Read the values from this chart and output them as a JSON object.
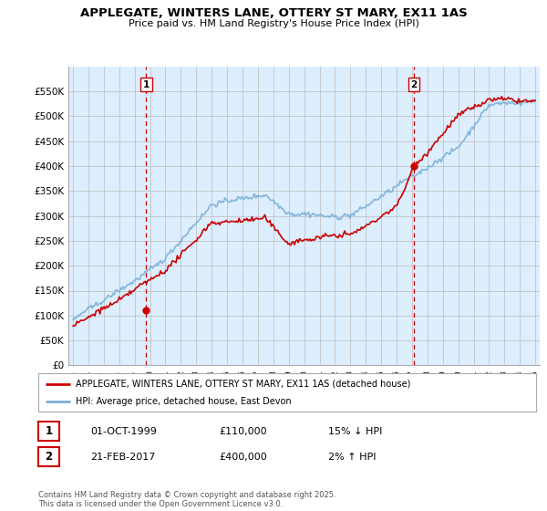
{
  "title": "APPLEGATE, WINTERS LANE, OTTERY ST MARY, EX11 1AS",
  "subtitle": "Price paid vs. HM Land Registry's House Price Index (HPI)",
  "ylabel_ticks": [
    "£0",
    "£50K",
    "£100K",
    "£150K",
    "£200K",
    "£250K",
    "£300K",
    "£350K",
    "£400K",
    "£450K",
    "£500K",
    "£550K"
  ],
  "ytick_vals": [
    0,
    50000,
    100000,
    150000,
    200000,
    250000,
    300000,
    350000,
    400000,
    450000,
    500000,
    550000
  ],
  "ylim": [
    0,
    600000
  ],
  "xlim_start": 1994.7,
  "xlim_end": 2025.3,
  "sale1": {
    "date_x": 1999.75,
    "price": 110000,
    "label": "1",
    "pct": "15% ↓ HPI",
    "date_str": "01-OCT-1999"
  },
  "sale2": {
    "date_x": 2017.12,
    "price": 400000,
    "label": "2",
    "pct": "2% ↑ HPI",
    "date_str": "21-FEB-2017"
  },
  "legend_entries": [
    {
      "label": "APPLEGATE, WINTERS LANE, OTTERY ST MARY, EX11 1AS (detached house)",
      "color": "#cc0000",
      "lw": 1.2
    },
    {
      "label": "HPI: Average price, detached house, East Devon",
      "color": "#7ab0d4",
      "lw": 1.2
    }
  ],
  "footer": "Contains HM Land Registry data © Crown copyright and database right 2025.\nThis data is licensed under the Open Government Licence v3.0.",
  "bg_color": "#ffffff",
  "grid_color": "#bbbbbb",
  "plot_bg": "#ddeeff"
}
